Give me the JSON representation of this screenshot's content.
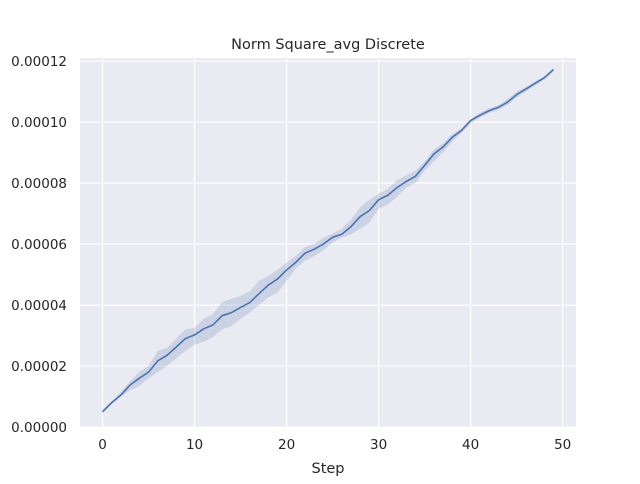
{
  "chart_data": {
    "type": "line",
    "title": "Norm Square_avg Discrete",
    "xlabel": "Step",
    "ylabel": "",
    "xlim": [
      -2.45,
      51.45
    ],
    "ylim": [
      0.0,
      0.000121
    ],
    "x_ticks": [
      0,
      10,
      20,
      30,
      40,
      50
    ],
    "x_tick_labels": [
      "0",
      "10",
      "20",
      "30",
      "40",
      "50"
    ],
    "y_ticks": [
      0.0,
      2e-05,
      4e-05,
      6e-05,
      8e-05,
      0.0001,
      0.00012
    ],
    "y_tick_labels": [
      "0.00000",
      "0.00002",
      "0.00004",
      "0.00006",
      "0.00008",
      "0.00010",
      "0.00012"
    ],
    "grid": true,
    "style": {
      "background": "#eaeaf2",
      "grid_color": "#ffffff",
      "line_color": "#4c72b0",
      "band_color": "#4c72b0",
      "band_opacity": 0.2
    },
    "series": [
      {
        "x": [
          0,
          1,
          2,
          3,
          4,
          5,
          6,
          7,
          8,
          9,
          10,
          11,
          12,
          13,
          14,
          15,
          16,
          17,
          18,
          19,
          20,
          21,
          22,
          23,
          24,
          25,
          26,
          27,
          28,
          29,
          30,
          31,
          32,
          33,
          34,
          35,
          36,
          37,
          38,
          39,
          40,
          41,
          42,
          43,
          44,
          45,
          46,
          47,
          48,
          49
        ],
        "y": [
          5e-06,
          8e-06,
          1.05e-05,
          1.38e-05,
          1.6e-05,
          1.8e-05,
          2.17e-05,
          2.35e-05,
          2.62e-05,
          2.9e-05,
          3.02e-05,
          3.22e-05,
          3.35e-05,
          3.65e-05,
          3.75e-05,
          3.92e-05,
          4.08e-05,
          4.37e-05,
          4.65e-05,
          4.85e-05,
          5.15e-05,
          5.4e-05,
          5.7e-05,
          5.83e-05,
          6e-05,
          6.22e-05,
          6.32e-05,
          6.57e-05,
          6.9e-05,
          7.1e-05,
          7.45e-05,
          7.6e-05,
          7.85e-05,
          8.05e-05,
          8.22e-05,
          8.58e-05,
          8.95e-05,
          9.18e-05,
          9.5e-05,
          9.72e-05,
          0.0001005,
          0.0001022,
          0.0001037,
          0.0001048,
          0.0001065,
          0.000109,
          0.0001108,
          0.0001127,
          0.0001145,
          0.0001172
        ],
        "y_lower": [
          4.5e-06,
          7.5e-06,
          1e-05,
          1.2e-05,
          1.35e-05,
          1.6e-05,
          1.8e-05,
          2e-05,
          2.25e-05,
          2.5e-05,
          2.7e-05,
          2.8e-05,
          2.95e-05,
          3.2e-05,
          3.3e-05,
          3.55e-05,
          3.75e-05,
          4e-05,
          4.25e-05,
          4.4e-05,
          4.8e-05,
          5.2e-05,
          5.45e-05,
          5.6e-05,
          5.8e-05,
          6.05e-05,
          6.2e-05,
          6.32e-05,
          6.5e-05,
          6.7e-05,
          7.15e-05,
          7.3e-05,
          7.55e-05,
          7.85e-05,
          8e-05,
          8.4e-05,
          8.7e-05,
          9e-05,
          9.35e-05,
          9.65e-05,
          9.95e-05,
          0.0001015,
          0.000103,
          0.000104,
          0.0001055,
          0.000108,
          0.00011,
          0.000112,
          0.000114,
          0.0001165
        ],
        "y_upper": [
          5.5e-06,
          8.5e-06,
          1.15e-05,
          1.5e-05,
          1.8e-05,
          2e-05,
          2.5e-05,
          2.6e-05,
          2.9e-05,
          3.2e-05,
          3.25e-05,
          3.55e-05,
          3.7e-05,
          4.1e-05,
          4.2e-05,
          4.3e-05,
          4.45e-05,
          4.8e-05,
          4.95e-05,
          5.15e-05,
          5.4e-05,
          5.6e-05,
          5.9e-05,
          6e-05,
          6.2e-05,
          6.35e-05,
          6.5e-05,
          6.8e-05,
          7.2e-05,
          7.45e-05,
          7.65e-05,
          7.8e-05,
          8.1e-05,
          8.25e-05,
          8.4e-05,
          8.7e-05,
          9.1e-05,
          9.3e-05,
          9.6e-05,
          9.8e-05,
          0.000101,
          0.000103,
          0.0001045,
          0.0001055,
          0.0001075,
          0.00011,
          0.0001115,
          0.0001132,
          0.000115,
          0.0001178
        ]
      }
    ]
  }
}
